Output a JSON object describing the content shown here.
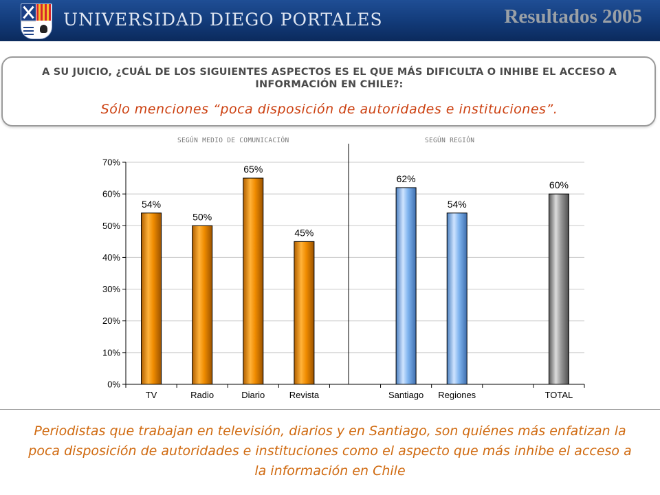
{
  "header": {
    "university_name": "UNIVERSIDAD DIEGO PORTALES",
    "year_title": "Resultados 2005"
  },
  "question": {
    "text": "A SU JUICIO, ¿CUÁL DE LOS SIGUIENTES ASPECTOS ES EL QUE MÁS DIFICULTA O INHIBE EL ACCESO A INFORMACIÓN EN CHILE?:",
    "subtitle": "Sólo menciones “poca disposición de autoridades e instituciones”."
  },
  "group_labels": {
    "medio": "SEGÚN MEDIO DE COMUNICACIÓN",
    "region": "SEGÚN REGIÓN"
  },
  "conclusion": "Periodistas que trabajan en televisión, diarios y en Santiago, son quiénes más enfatizan la poca disposición de autoridades e instituciones como el aspecto que más inhibe el acceso a la información en Chile",
  "colors": {
    "medio": "#f08c00",
    "region": "#7fb4ef",
    "total": "#8c8c8c"
  },
  "chart_data": {
    "type": "bar",
    "categories": [
      "TV",
      "Radio",
      "Diario",
      "Revista",
      "",
      "Santiago",
      "Regiones",
      "",
      "TOTAL"
    ],
    "values": [
      54,
      50,
      65,
      45,
      null,
      62,
      54,
      null,
      60
    ],
    "data_labels": [
      "54%",
      "50%",
      "65%",
      "45%",
      "",
      "62%",
      "54%",
      "",
      "60%"
    ],
    "groups": [
      "medio",
      "medio",
      "medio",
      "medio",
      "",
      "region",
      "region",
      "",
      "total"
    ],
    "ylim": [
      0,
      70
    ],
    "yticks": [
      "0%",
      "10%",
      "20%",
      "30%",
      "40%",
      "50%",
      "60%",
      "70%"
    ],
    "grid": true,
    "legend": false
  }
}
